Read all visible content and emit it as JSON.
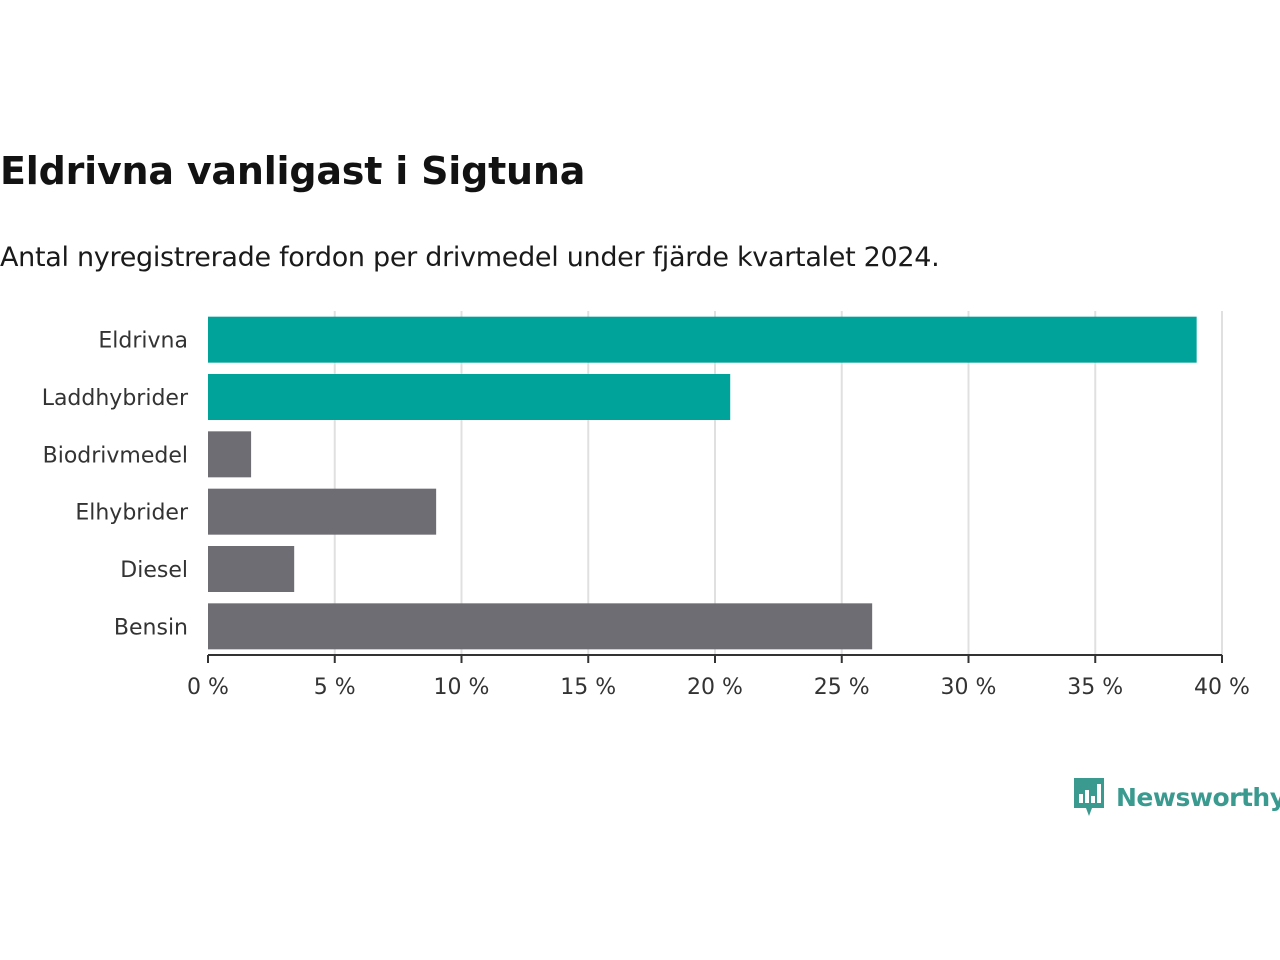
{
  "header": {
    "title": "Eldrivna vanligast i Sigtuna",
    "subtitle": "Antal nyregistrerade fordon per drivmedel under fjärde kvartalet 2024."
  },
  "chart_data": {
    "type": "bar",
    "orientation": "horizontal",
    "title": "Eldrivna vanligast i Sigtuna",
    "subtitle": "Antal nyregistrerade fordon per drivmedel under fjärde kvartalet 2024.",
    "xlabel": "",
    "ylabel": "",
    "xlim": [
      0,
      40
    ],
    "x_ticks": [
      0,
      5,
      10,
      15,
      20,
      25,
      30,
      35,
      40
    ],
    "x_tick_suffix": " %",
    "grid": true,
    "categories": [
      "Eldrivna",
      "Laddhybrider",
      "Biodrivmedel",
      "Elhybrider",
      "Diesel",
      "Bensin"
    ],
    "values": [
      39.0,
      20.6,
      1.7,
      9.0,
      3.4,
      26.2
    ],
    "unit": "%",
    "highlighted": [
      "Eldrivna",
      "Laddhybrider"
    ],
    "colors": {
      "highlight": "#00a39a",
      "default": "#6e6d73",
      "grid": "#e0e0e0",
      "axis": "#333333"
    }
  },
  "logo": {
    "text": "Newsworthy",
    "color": "#3a9a90"
  }
}
